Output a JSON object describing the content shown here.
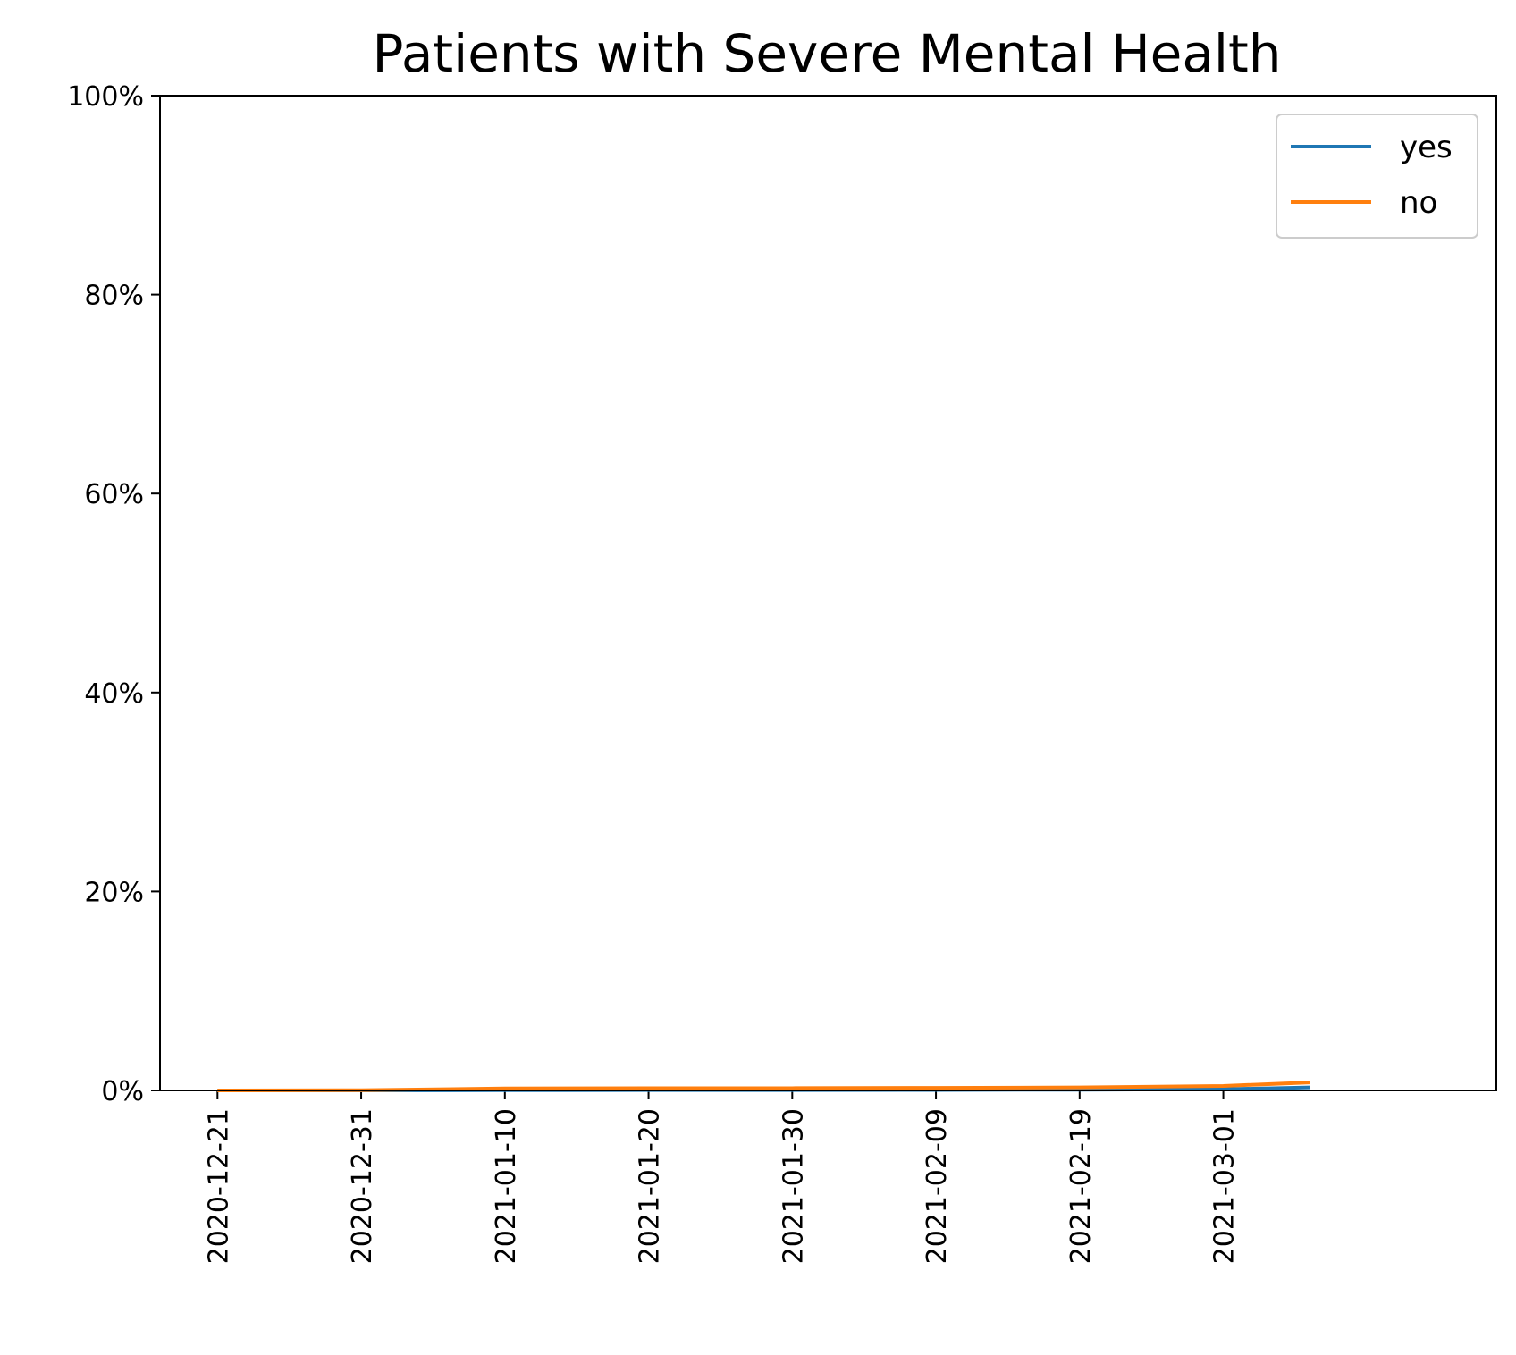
{
  "chart_data": {
    "type": "line",
    "title": "Patients with Severe Mental Health",
    "xlabel": "",
    "ylabel": "",
    "x_axis": {
      "kind": "date",
      "range": [
        "2020-12-17",
        "2021-03-20"
      ],
      "ticks": [
        "2020-12-21",
        "2020-12-31",
        "2021-01-10",
        "2021-01-20",
        "2021-01-30",
        "2021-02-09",
        "2021-02-19",
        "2021-03-01"
      ]
    },
    "y_axis": {
      "range": [
        0,
        100
      ],
      "unit": "%",
      "ticks": [
        0,
        20,
        40,
        60,
        80,
        100
      ],
      "tick_labels": [
        "0%",
        "20%",
        "40%",
        "60%",
        "80%",
        "100%"
      ]
    },
    "grid": false,
    "legend": {
      "position": "top-right"
    },
    "x": [
      "2020-12-21",
      "2020-12-31",
      "2021-01-10",
      "2021-01-20",
      "2021-01-30",
      "2021-02-09",
      "2021-02-19",
      "2021-03-01",
      "2021-03-07"
    ],
    "series": [
      {
        "name": "yes",
        "color": "#1f77b4",
        "values": [
          0.0,
          0.0,
          0.02,
          0.03,
          0.03,
          0.05,
          0.07,
          0.12,
          0.3
        ]
      },
      {
        "name": "no",
        "color": "#ff7f0e",
        "values": [
          0.0,
          0.02,
          0.2,
          0.22,
          0.23,
          0.26,
          0.3,
          0.45,
          0.8
        ]
      }
    ]
  }
}
